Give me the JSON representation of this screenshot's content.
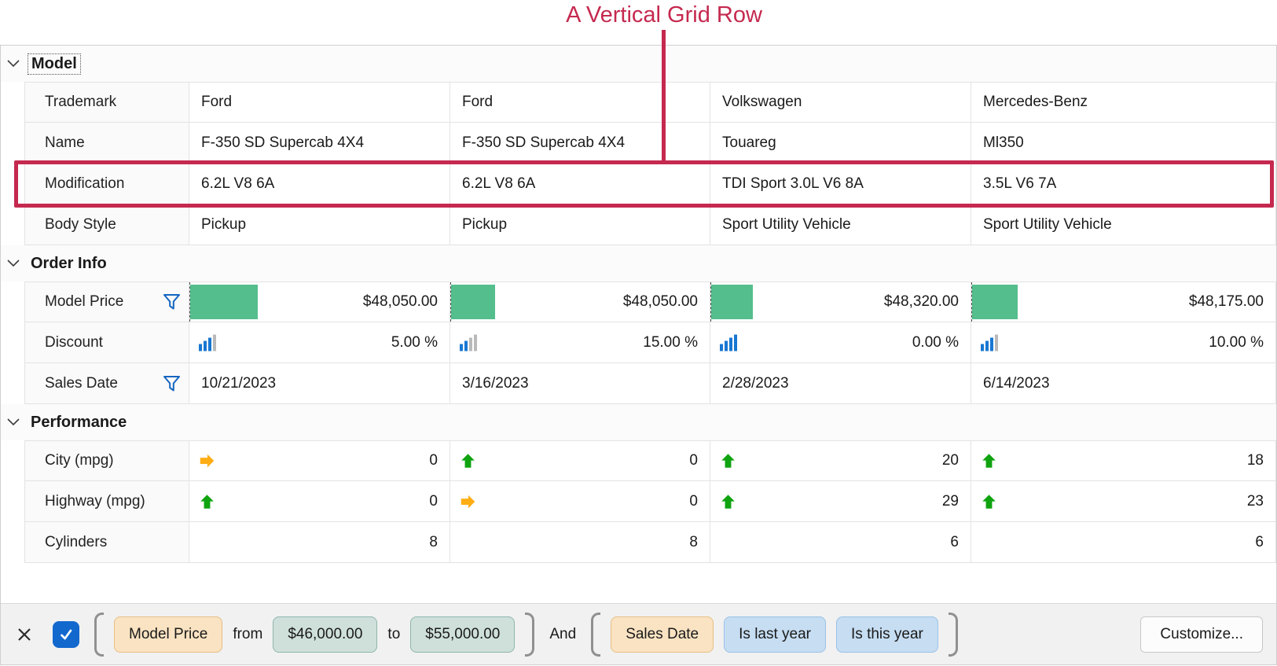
{
  "annotation": {
    "title": "A Vertical Grid Row"
  },
  "colors": {
    "accent_crimson": "#C5294F",
    "data_bar_green": "#54BE8D",
    "trend_up_green": "#0FA30F",
    "trend_neutral_orange": "#FFAD14",
    "filter_funnel_blue": "#1565C0",
    "discount_bar_blue": "#1877D2",
    "checkbox_blue": "#1368CE",
    "chip_field_orange": "#FAE3C2",
    "chip_value_teal": "#CFE0DB",
    "chip_criteria_blue": "#C6DDF2"
  },
  "grid": {
    "sections": [
      {
        "label": "Model",
        "focused": true,
        "rows": [
          {
            "label": "Trademark",
            "filter": false,
            "type": "text",
            "values": [
              "Ford",
              "Ford",
              "Volkswagen",
              "Mercedes-Benz"
            ]
          },
          {
            "label": "Name",
            "filter": false,
            "type": "text",
            "values": [
              "F-350 SD Supercab 4X4",
              "F-350 SD Supercab 4X4",
              "Touareg",
              "Ml350"
            ]
          },
          {
            "label": "Modification",
            "filter": false,
            "type": "text",
            "highlighted": true,
            "values": [
              "6.2L V8 6A",
              "6.2L V8 6A",
              "TDI Sport 3.0L V6 8A",
              "3.5L V6 7A"
            ]
          },
          {
            "label": "Body Style",
            "filter": false,
            "type": "text",
            "values": [
              "Pickup",
              "Pickup",
              "Sport Utility Vehicle",
              "Sport Utility Vehicle"
            ]
          }
        ]
      },
      {
        "label": "Order Info",
        "focused": false,
        "rows": [
          {
            "label": "Model Price",
            "filter": true,
            "type": "price",
            "values": [
              {
                "text": "$48,050.00",
                "bar_pct": 26
              },
              {
                "text": "$48,050.00",
                "bar_pct": 17
              },
              {
                "text": "$48,320.00",
                "bar_pct": 16
              },
              {
                "text": "$48,175.00",
                "bar_pct": 15
              }
            ]
          },
          {
            "label": "Discount",
            "filter": false,
            "type": "discount",
            "values": [
              {
                "text": "5.00 %",
                "blue_bars": 3
              },
              {
                "text": "15.00 %",
                "blue_bars": 2
              },
              {
                "text": "0.00 %",
                "blue_bars": 4
              },
              {
                "text": "10.00 %",
                "blue_bars": 3
              }
            ]
          },
          {
            "label": "Sales Date",
            "filter": true,
            "type": "text",
            "values": [
              "10/21/2023",
              "3/16/2023",
              "2/28/2023",
              "6/14/2023"
            ]
          }
        ]
      },
      {
        "label": "Performance",
        "focused": false,
        "rows": [
          {
            "label": "City (mpg)",
            "filter": false,
            "type": "trend",
            "values": [
              {
                "text": "0",
                "icon": "arrow-right"
              },
              {
                "text": "0",
                "icon": "arrow-up"
              },
              {
                "text": "20",
                "icon": "arrow-up"
              },
              {
                "text": "18",
                "icon": "arrow-up"
              }
            ]
          },
          {
            "label": "Highway (mpg)",
            "filter": false,
            "type": "trend",
            "values": [
              {
                "text": "0",
                "icon": "arrow-up"
              },
              {
                "text": "0",
                "icon": "arrow-right"
              },
              {
                "text": "29",
                "icon": "arrow-up"
              },
              {
                "text": "23",
                "icon": "arrow-up"
              }
            ]
          },
          {
            "label": "Cylinders",
            "filter": false,
            "type": "number",
            "values": [
              "8",
              "8",
              "6",
              "6"
            ]
          }
        ]
      }
    ]
  },
  "filter_bar": {
    "close_icon": "close-x",
    "checkbox_checked": true,
    "group1": {
      "field": "Model Price",
      "from_label": "from",
      "from_value": "$46,000.00",
      "to_label": "to",
      "to_value": "$55,000.00"
    },
    "operator": "And",
    "group2": {
      "field": "Sales Date",
      "criteria": [
        "Is last year",
        "Is this year"
      ]
    },
    "customize_label": "Customize..."
  }
}
